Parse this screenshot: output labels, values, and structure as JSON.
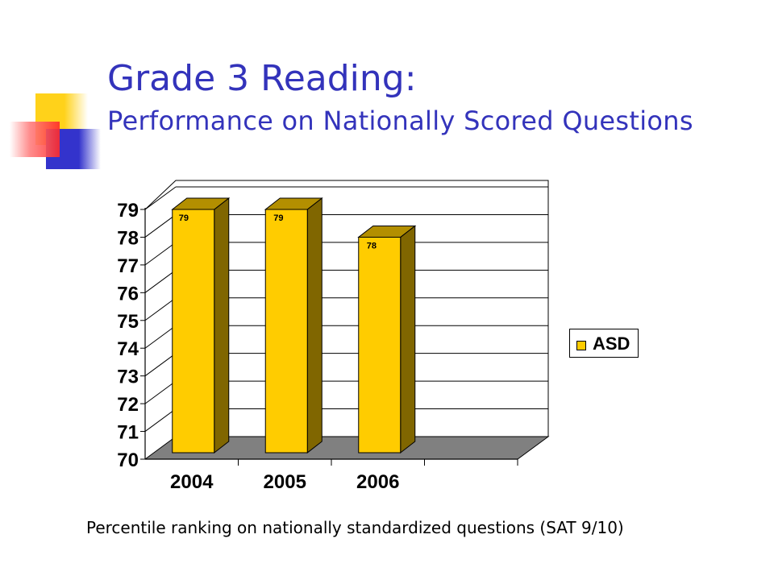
{
  "slide": {
    "title": "Grade 3 Reading:",
    "subtitle": "Performance on Nationally Scored Questions",
    "caption": "Percentile ranking on nationally standardized questions (SAT 9/10)"
  },
  "colors": {
    "title": "#3333bb",
    "bar_front": "#ffcc00",
    "bar_side": "#806600",
    "bar_top": "#b38f00",
    "floor": "#808080",
    "accent_yellow": "#ffd21a",
    "accent_blue": "#3333cc",
    "accent_red": "#ff2a2a"
  },
  "chart_data": {
    "type": "bar",
    "categories": [
      "2004",
      "2005",
      "2006"
    ],
    "series": [
      {
        "name": "ASD",
        "values": [
          79,
          79,
          78
        ]
      }
    ],
    "data_labels": [
      "79",
      "79",
      "78"
    ],
    "ylim": [
      70,
      79
    ],
    "yticks": [
      70,
      71,
      72,
      73,
      74,
      75,
      76,
      77,
      78,
      79
    ],
    "grid": true,
    "legend": "right",
    "three_d": true
  }
}
